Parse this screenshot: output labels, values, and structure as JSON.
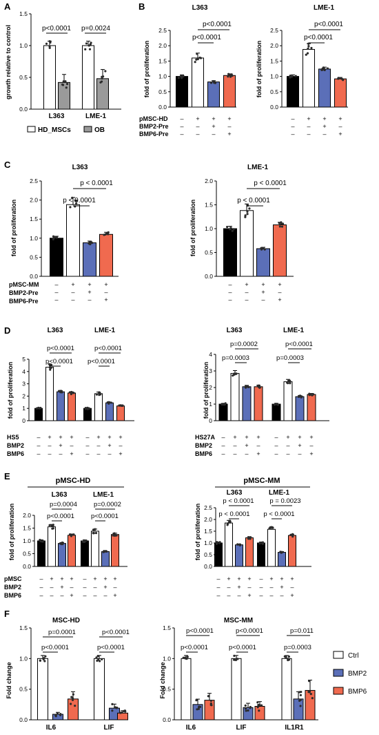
{
  "colors": {
    "white": "#ffffff",
    "black": "#000000",
    "gray": "#9a9a9a",
    "blue": "#5b6fb8",
    "red": "#f06a4f",
    "dot": "#2b2b2b"
  },
  "chart_data": [
    {
      "panel": "A",
      "type": "bar",
      "ylabel": "growth relative to control",
      "ylim": [
        0,
        1.5
      ],
      "yticks": [
        "0.0",
        "0.5",
        "1.0",
        "1.5"
      ],
      "groups": [
        "L363",
        "LME-1"
      ],
      "series": [
        {
          "name": "HD_MSCs",
          "values": [
            1.0,
            1.0
          ]
        },
        {
          "name": "OB",
          "values": [
            0.42,
            0.48
          ]
        }
      ],
      "annotations": [
        "p<0.0001",
        "p=0.0024"
      ],
      "legend": [
        "HD_MSCs",
        "OB"
      ]
    },
    {
      "panel": "B",
      "type": "bar",
      "title": "L363",
      "ylabel": "fold of proliferation",
      "ylim": [
        0,
        2.5
      ],
      "yticks": [
        "0.0",
        "0.5",
        "1.0",
        "1.5",
        "2.0",
        "2.5"
      ],
      "values": [
        1.0,
        1.6,
        0.82,
        1.03
      ],
      "annotations": [
        "p<0.0001",
        "p<0.0001"
      ],
      "rows": [
        {
          "label": "pMSC-HD",
          "signs": [
            "-",
            "+",
            "+",
            "+"
          ]
        },
        {
          "label": "BMP2-Pre",
          "signs": [
            "-",
            "-",
            "+",
            "-"
          ]
        },
        {
          "label": "BMP6-Pre",
          "signs": [
            "-",
            "-",
            "-",
            "+"
          ]
        }
      ]
    },
    {
      "panel": "B",
      "type": "bar",
      "title": "LME-1",
      "ylabel": "fold of proliferation",
      "ylim": [
        0,
        2.5
      ],
      "yticks": [
        "0.0",
        "0.5",
        "1.0",
        "1.5",
        "2.0",
        "2.5"
      ],
      "values": [
        1.0,
        1.88,
        1.24,
        0.92
      ],
      "annotations": [
        "p<0.0001",
        "p<0.0001"
      ],
      "signs": [
        [
          "-",
          "+",
          "+",
          "+"
        ],
        [
          "-",
          "-",
          "+",
          "-"
        ],
        [
          "-",
          "-",
          "-",
          "+"
        ]
      ]
    },
    {
      "panel": "C",
      "type": "bar",
      "title": "L363",
      "ylabel": "fold of proliferation",
      "ylim": [
        0,
        2.5
      ],
      "yticks": [
        "0.0",
        "0.5",
        "1.0",
        "1.5",
        "2.0",
        "2.5"
      ],
      "values": [
        1.0,
        1.88,
        0.88,
        1.1
      ],
      "annotations": [
        "p < 0.0001",
        "p < 0.0001"
      ],
      "rows": [
        {
          "label": "pMSC-MM",
          "signs": [
            "-",
            "+",
            "+",
            "+"
          ]
        },
        {
          "label": "BMP2-Pre",
          "signs": [
            "-",
            "-",
            "+",
            "-"
          ]
        },
        {
          "label": "BMP6-Pre",
          "signs": [
            "-",
            "-",
            "-",
            "+"
          ]
        }
      ]
    },
    {
      "panel": "C",
      "type": "bar",
      "title": "LME-1",
      "ylabel": "fold of proliferation",
      "ylim": [
        0,
        2.0
      ],
      "yticks": [
        "0.0",
        "0.5",
        "1.0",
        "1.5",
        "2.0"
      ],
      "values": [
        1.0,
        1.38,
        0.58,
        1.08
      ],
      "annotations": [
        "p < 0.0001",
        "p < 0.0001"
      ],
      "signs": [
        [
          "-",
          "+",
          "+",
          "+"
        ],
        [
          "-",
          "-",
          "+",
          "-"
        ],
        [
          "-",
          "-",
          "-",
          "+"
        ]
      ]
    },
    {
      "panel": "D",
      "type": "bar",
      "ylabel": "fold of proliferation",
      "ylim": [
        0,
        5
      ],
      "yticks": [
        "0",
        "1",
        "2",
        "3",
        "4",
        "5"
      ],
      "groups": [
        "L363",
        "LME-1"
      ],
      "values": [
        [
          1.0,
          4.35,
          2.35,
          2.25
        ],
        [
          1.0,
          2.2,
          1.45,
          1.2
        ]
      ],
      "annotations": [
        "p<0.0001",
        "p<0.0001",
        "p<0.0001",
        "p<0.0001"
      ],
      "rows": [
        {
          "label": "HS5",
          "signs": [
            "-",
            "+",
            "+",
            "+",
            "-",
            "+",
            "+",
            "+"
          ]
        },
        {
          "label": "BMP2",
          "signs": [
            "-",
            "-",
            "+",
            "-",
            "-",
            "-",
            "+",
            "-"
          ]
        },
        {
          "label": "BMP6",
          "signs": [
            "-",
            "-",
            "-",
            "+",
            "-",
            "-",
            "-",
            "+"
          ]
        }
      ]
    },
    {
      "panel": "D",
      "type": "bar",
      "ylabel": "fold of proliferation",
      "ylim": [
        0,
        4
      ],
      "yticks": [
        "0",
        "1",
        "2",
        "3",
        "4"
      ],
      "groups": [
        "L363",
        "LME-1"
      ],
      "values": [
        [
          1.0,
          2.85,
          2.05,
          2.05
        ],
        [
          1.0,
          2.35,
          1.45,
          1.58
        ]
      ],
      "annotations": [
        "p=0.0002",
        "p=0.0003",
        "p<0.0001",
        "p=0.0003"
      ],
      "rows": [
        {
          "label": "HS27A",
          "signs": [
            "-",
            "+",
            "+",
            "+",
            "-",
            "+",
            "+",
            "+"
          ]
        },
        {
          "label": "BMP2",
          "signs": [
            "-",
            "-",
            "+",
            "-",
            "-",
            "-",
            "+",
            "-"
          ]
        },
        {
          "label": "BMP6",
          "signs": [
            "-",
            "-",
            "-",
            "+",
            "-",
            "-",
            "-",
            "+"
          ]
        }
      ]
    },
    {
      "panel": "E",
      "type": "bar",
      "title": "pMSC-HD",
      "ylabel": "fold of proliferation",
      "ylim": [
        0,
        2.0
      ],
      "yticks": [
        "0.0",
        "0.5",
        "1.0",
        "1.5",
        "2.0"
      ],
      "groups": [
        "L363",
        "LME-1"
      ],
      "values": [
        [
          1.0,
          1.55,
          0.9,
          1.22
        ],
        [
          1.0,
          1.38,
          0.58,
          1.25
        ]
      ],
      "annotations": [
        "p=0.0004",
        "p<0.0001",
        "p=0.0002",
        "p<0.0001"
      ],
      "rows": [
        {
          "label": "pMSC",
          "signs": [
            "-",
            "+",
            "+",
            "+",
            "-",
            "+",
            "+",
            "+"
          ]
        },
        {
          "label": "BMP2",
          "signs": [
            "-",
            "-",
            "+",
            "-",
            "-",
            "-",
            "+",
            "-"
          ]
        },
        {
          "label": "BMP6",
          "signs": [
            "-",
            "-",
            "-",
            "+",
            "-",
            "-",
            "-",
            "+"
          ]
        }
      ]
    },
    {
      "panel": "E",
      "type": "bar",
      "title": "pMSC-MM",
      "ylabel": "fold of proliferation",
      "ylim": [
        0,
        2.5
      ],
      "yticks": [
        "0.0",
        "0.5",
        "1.0",
        "1.5",
        "2.0",
        "2.5"
      ],
      "groups": [
        "L363",
        "LME-1"
      ],
      "values": [
        [
          1.0,
          1.85,
          0.92,
          1.22
        ],
        [
          1.0,
          1.58,
          0.6,
          1.32
        ]
      ],
      "annotations": [
        "p < 0.0001",
        "p < 0.0001",
        "p = 0.0023",
        "p < 0.0001"
      ],
      "signs": [
        [
          "-",
          "+",
          "+",
          "+",
          "-",
          "+",
          "+",
          "+"
        ],
        [
          "-",
          "-",
          "+",
          "-",
          "-",
          "-",
          "+",
          "-"
        ],
        [
          "-",
          "-",
          "-",
          "+",
          "-",
          "-",
          "-",
          "+"
        ]
      ]
    },
    {
      "panel": "F",
      "type": "bar",
      "title": "MSC-HD",
      "ylabel": "Fold change",
      "ylim": [
        0,
        1.5
      ],
      "yticks": [
        "0.0",
        "0.5",
        "1.0",
        "1.5"
      ],
      "groups": [
        "IL6",
        "LIF"
      ],
      "values": [
        [
          1.0,
          0.09,
          0.34
        ],
        [
          1.0,
          0.19,
          0.11
        ]
      ],
      "annotations": [
        "p=0.0001",
        "p<0.0001",
        "p<0.0001",
        "p<0.0001"
      ]
    },
    {
      "panel": "F",
      "type": "bar",
      "title": "MSC-MM",
      "ylabel": "Fold change",
      "ylim": [
        0,
        1.5
      ],
      "yticks": [
        "0.0",
        "0.5",
        "1.0",
        "1.5"
      ],
      "groups": [
        "IL6",
        "LIF",
        "IL1R1"
      ],
      "values": [
        [
          1.0,
          0.25,
          0.32
        ],
        [
          1.0,
          0.2,
          0.22
        ],
        [
          1.0,
          0.34,
          0.48
        ]
      ],
      "annotations": [
        "p<0.0001",
        "p<0.0001",
        "p<0.0001",
        "p<0.0001",
        "p=0.011",
        "p=0.0003"
      ],
      "legend": [
        "Ctrl",
        "BMP2",
        "BMP6"
      ]
    }
  ],
  "text": {
    "A": {
      "letter": "A",
      "ylabel": "growth relative to control",
      "p1": "p<0.0001",
      "p2": "p=0.0024",
      "g1": "L363",
      "g2": "LME-1",
      "leg1": "HD_MSCs",
      "leg2": "OB"
    },
    "B": {
      "letter": "B",
      "t1": "L363",
      "t2": "LME-1",
      "ylabel": "fold of proliferation",
      "pa": "p<0.0001",
      "pb": "p<0.0001",
      "pc": "p<0.0001",
      "pd": "p<0.0001",
      "r1": "pMSC-HD",
      "r2": "BMP2-Pre",
      "r3": "BMP6-Pre"
    },
    "C": {
      "letter": "C",
      "t1": "L363",
      "t2": "LME-1",
      "ylabel": "fold of proliferation",
      "pa": "p < 0.0001",
      "pb": "p < 0.0001",
      "pc": "p < 0.0001",
      "pd": "p < 0.0001",
      "r1": "pMSC-MM",
      "r2": "BMP2-Pre",
      "r3": "BMP6-Pre"
    },
    "D": {
      "letter": "D",
      "ylabel": "fold of proliferation",
      "g1": "L363",
      "g2": "LME-1",
      "p1": "p<0.0001",
      "p2": "p<0.0001",
      "p3": "p<0.0001",
      "p4": "p<0.0001",
      "p5": "p=0.0002",
      "p6": "p=0.0003",
      "p7": "p<0.0001",
      "p8": "p=0.0003",
      "r1": "HS5",
      "r2": "BMP2",
      "r3": "BMP6",
      "r4": "HS27A"
    },
    "E": {
      "letter": "E",
      "t1": "pMSC-HD",
      "t2": "pMSC-MM",
      "ylabel": "fold of proliferation",
      "g1": "L363",
      "g2": "LME-1",
      "p1": "p=0.0004",
      "p2": "p<0.0001",
      "p3": "p=0.0002",
      "p4": "p<0.0001",
      "p5": "p < 0.0001",
      "p6": "p < 0.0001",
      "p7": "p = 0.0023",
      "p8": "p < 0.0001",
      "r1": "pMSC",
      "r2": "BMP2",
      "r3": "BMP6"
    },
    "F": {
      "letter": "F",
      "t1": "MSC-HD",
      "t2": "MSC-MM",
      "ylabel": "Fold change",
      "g1": "IL6",
      "g2": "LIF",
      "g3": "IL1R1",
      "p1": "p=0.0001",
      "p2": "p<0.0001",
      "p3": "p<0.0001",
      "p4": "p<0.0001",
      "p5": "p<0.0001",
      "p6": "p<0.0001",
      "p7": "p<0.0001",
      "p8": "p<0.0001",
      "p9": "p=0.011",
      "p10": "p=0.0003",
      "leg1": "Ctrl",
      "leg2": "BMP2",
      "leg3": "BMP6"
    }
  }
}
